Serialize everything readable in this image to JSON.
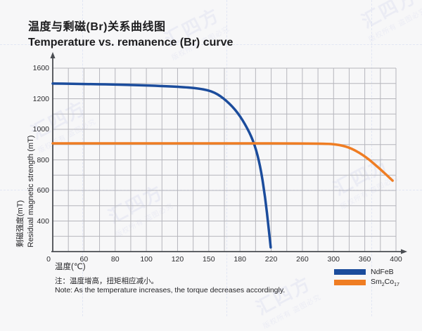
{
  "header": {
    "title_zh": "温度与剩磁(Br)关系曲线图",
    "title_en": "Temperature vs. remanence (Br) curve"
  },
  "chart_data": {
    "type": "line",
    "title": "Temperature vs. remanence (Br) curve",
    "x_axis": {
      "label": "温度(℃)",
      "ticks": [
        "0",
        "60",
        "80",
        "100",
        "120",
        "150",
        "180",
        "220",
        "260",
        "300",
        "360",
        "400"
      ]
    },
    "y_axis": {
      "label_zh": "剩磁强度(mT)",
      "label_en": "Residual magnetic strength (mT)",
      "ticks": [
        "1600",
        "1200",
        "1000",
        "800",
        "600",
        "400"
      ]
    },
    "grid": {
      "on": true,
      "columns": 22,
      "rows": 12,
      "grid_color": "#b6b6bc",
      "axis_color": "#4a4d52"
    },
    "legend": {
      "position": "bottom-right",
      "items": [
        {
          "label": "NdFeB"
        },
        {
          "parts": [
            "Sm",
            "2",
            "Co",
            "17"
          ]
        }
      ]
    },
    "series": [
      {
        "name": "NdFeB",
        "color": "#1b4c9c",
        "values_degC_mT": [
          [
            0,
            1370
          ],
          [
            60,
            1368
          ],
          [
            80,
            1365
          ],
          [
            100,
            1360
          ],
          [
            120,
            1355
          ],
          [
            150,
            1330
          ],
          [
            180,
            1150
          ],
          [
            200,
            900
          ],
          [
            210,
            600
          ],
          [
            215,
            350
          ],
          [
            220,
            0
          ]
        ],
        "path_points": [
          [
            0.0,
            0.084
          ],
          [
            0.174,
            0.088
          ],
          [
            0.359,
            0.1
          ],
          [
            0.43,
            0.111
          ],
          [
            0.471,
            0.13
          ],
          [
            0.506,
            0.176
          ],
          [
            0.539,
            0.241
          ],
          [
            0.568,
            0.33
          ],
          [
            0.588,
            0.414
          ],
          [
            0.605,
            0.536
          ],
          [
            0.619,
            0.705
          ],
          [
            0.629,
            0.87
          ],
          [
            0.635,
            0.977
          ]
        ]
      },
      {
        "name": "Sm2Co17",
        "color": "#ef7d23",
        "values_degC_mT": [
          [
            0,
            900
          ],
          [
            100,
            900
          ],
          [
            200,
            900
          ],
          [
            300,
            897
          ],
          [
            320,
            880
          ],
          [
            360,
            810
          ],
          [
            400,
            655
          ]
        ],
        "path_points": [
          [
            0.0,
            0.41
          ],
          [
            0.461,
            0.41
          ],
          [
            0.789,
            0.41
          ],
          [
            0.836,
            0.418
          ],
          [
            0.871,
            0.437
          ],
          [
            0.912,
            0.483
          ],
          [
            0.953,
            0.548
          ],
          [
            0.99,
            0.613
          ]
        ]
      }
    ]
  },
  "x_axis_title": "温度(℃)",
  "notes": {
    "zh": "注：温度增高，扭矩相应减小。",
    "en": "Note: As the temperature increases, the torque decreases accordingly."
  },
  "watermark": {
    "brand": "汇四方",
    "claim": "版权所有 盗图必究"
  }
}
